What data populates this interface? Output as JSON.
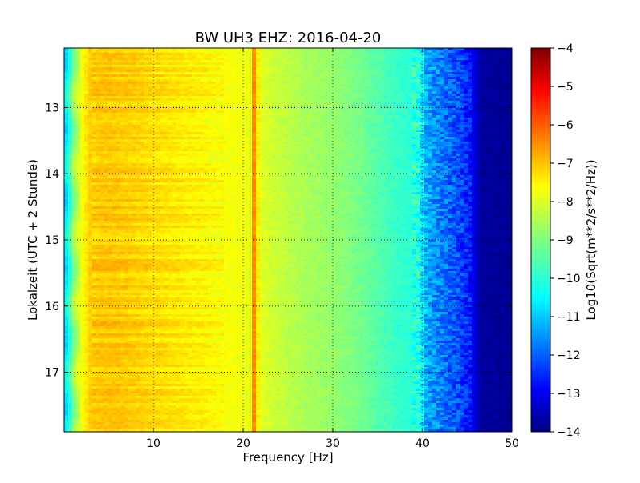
{
  "chart_data": {
    "type": "heatmap",
    "title": "BW UH3 EHZ: 2016-04-20",
    "xlabel": "Frequency [Hz]",
    "ylabel": "Lokalzeit (UTC + 2 Stunde)",
    "xlim": [
      0,
      50
    ],
    "ylim": [
      12.1,
      17.9
    ],
    "y_inverted": true,
    "x_ticks": [
      10,
      20,
      30,
      40,
      50
    ],
    "y_ticks": [
      13,
      14,
      15,
      16,
      17
    ],
    "grid": true,
    "colormap": "jet",
    "colorbar": {
      "label": "Log10(Sqrt(m**2/s**2/Hz))",
      "min": -14,
      "max": -4,
      "ticks": [
        -4,
        -5,
        -6,
        -7,
        -8,
        -9,
        -10,
        -11,
        -12,
        -13,
        -14
      ]
    },
    "spectrum_profile": {
      "frequency_hz": [
        0,
        0.6,
        1.2,
        2.0,
        2.8,
        4,
        6,
        8,
        10,
        12,
        14,
        16,
        18,
        20,
        20.8,
        21.3,
        21.8,
        23,
        25,
        27,
        30,
        33,
        35,
        37,
        39.5,
        40.5,
        42,
        44,
        45.3,
        46.5,
        50
      ],
      "log10_amplitude": [
        -10.7,
        -9.8,
        -8.7,
        -7.9,
        -7.3,
        -7.2,
        -7.2,
        -7.3,
        -7.4,
        -7.5,
        -7.6,
        -7.7,
        -7.8,
        -7.9,
        -7.95,
        -6.6,
        -8.0,
        -8.2,
        -8.4,
        -8.6,
        -8.8,
        -9.1,
        -9.4,
        -9.7,
        -9.9,
        -11.1,
        -11.5,
        -12.0,
        -12.5,
        -13.7,
        -13.8
      ]
    },
    "spectral_line": {
      "frequency_hz": 21.2,
      "log10_amplitude": -6.6
    }
  }
}
